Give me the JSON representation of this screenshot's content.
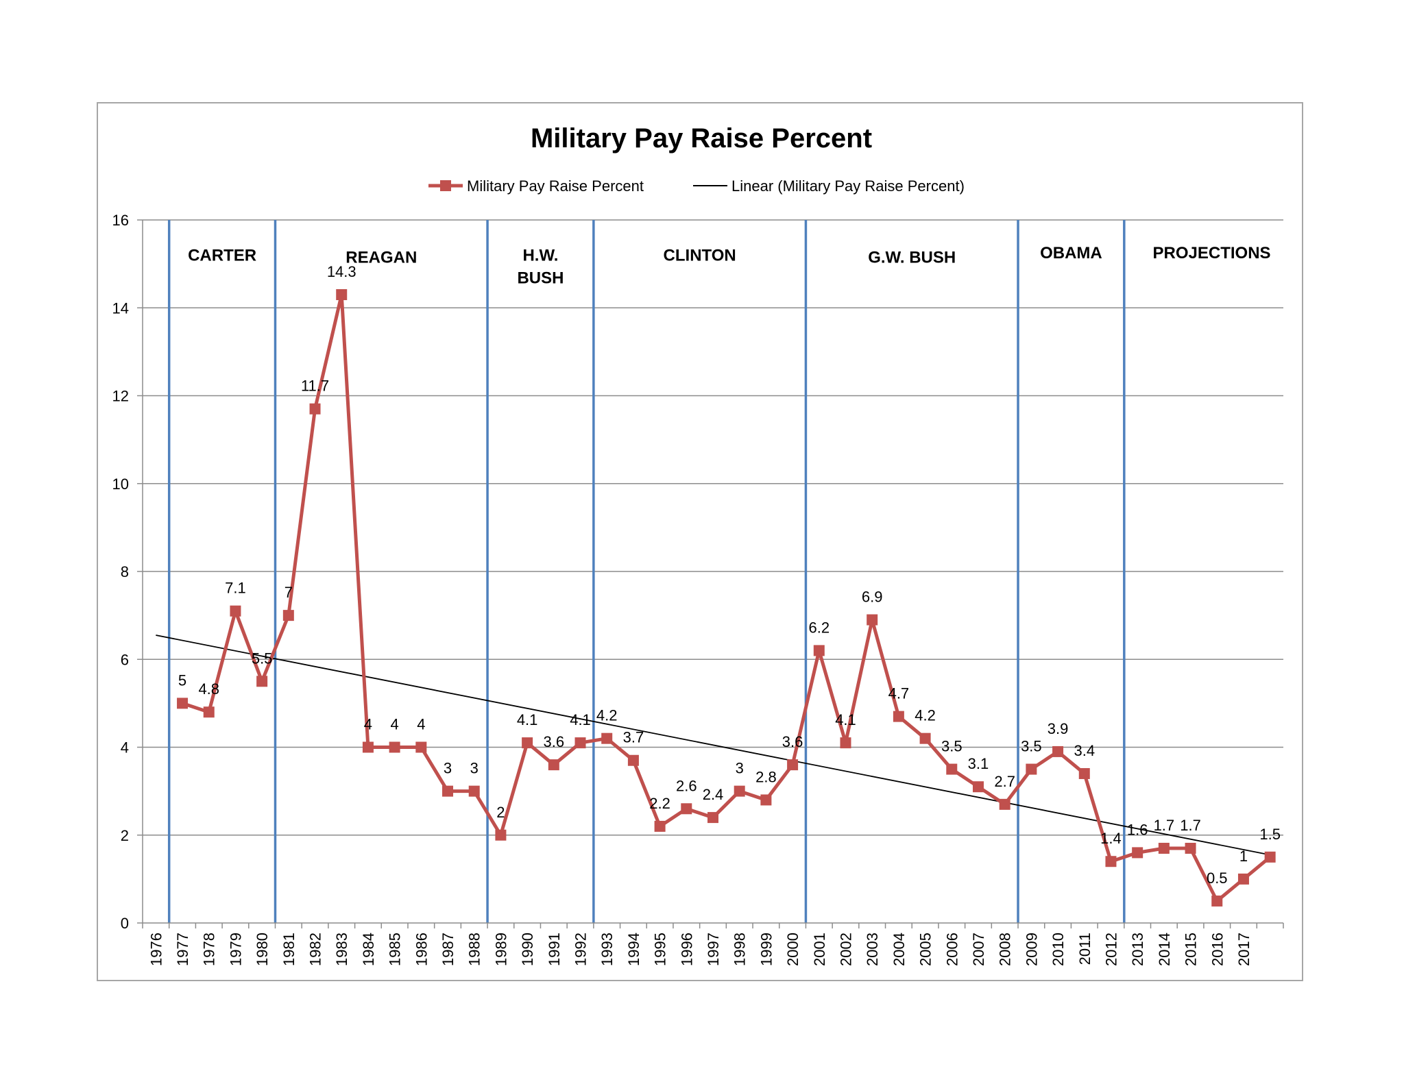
{
  "chart_data": {
    "type": "line",
    "title": "Military Pay Raise Percent",
    "xlabel": "",
    "ylabel": "",
    "ylim": [
      0,
      16
    ],
    "yticks": [
      0,
      2,
      4,
      6,
      8,
      10,
      12,
      14,
      16
    ],
    "categories": [
      "1976",
      "1977",
      "1978",
      "1979",
      "1980",
      "1981",
      "1982",
      "1983",
      "1984",
      "1985",
      "1986",
      "1987",
      "1988",
      "1989",
      "1990",
      "1991",
      "1992",
      "1993",
      "1994",
      "1995",
      "1996",
      "1997",
      "1998",
      "1999",
      "2000",
      "2001",
      "2002",
      "2003",
      "2004",
      "2005",
      "2006",
      "2007",
      "2008",
      "2009",
      "2010",
      "2011",
      "2012",
      "2013",
      "2014",
      "2015",
      "2016",
      "2017"
    ],
    "series": [
      {
        "name": "Military Pay Raise Percent",
        "color": "#c0504d",
        "marker": "square",
        "points": [
          {
            "x": 1.5,
            "y": 5,
            "label": "5"
          },
          {
            "x": 2.5,
            "y": 4.8,
            "label": "4.8"
          },
          {
            "x": 3.5,
            "y": 7.1,
            "label": "7.1"
          },
          {
            "x": 4.5,
            "y": 5.5,
            "label": "5.5"
          },
          {
            "x": 5.5,
            "y": 7,
            "label": "7"
          },
          {
            "x": 6.5,
            "y": 11.7,
            "label": "11.7"
          },
          {
            "x": 7.5,
            "y": 14.3,
            "label": "14.3"
          },
          {
            "x": 8.5,
            "y": 4,
            "label": "4"
          },
          {
            "x": 9.5,
            "y": 4,
            "label": "4"
          },
          {
            "x": 10.5,
            "y": 4,
            "label": "4"
          },
          {
            "x": 11.5,
            "y": 3,
            "label": "3"
          },
          {
            "x": 12.5,
            "y": 3,
            "label": "3"
          },
          {
            "x": 13.5,
            "y": 2,
            "label": "2"
          },
          {
            "x": 14.5,
            "y": 4.1,
            "label": "4.1"
          },
          {
            "x": 15.5,
            "y": 3.6,
            "label": "3.6"
          },
          {
            "x": 16.5,
            "y": 4.1,
            "label": "4.1"
          },
          {
            "x": 17.5,
            "y": 4.2,
            "label": "4.2"
          },
          {
            "x": 18.5,
            "y": 3.7,
            "label": "3.7"
          },
          {
            "x": 19.5,
            "y": 2.2,
            "label": "2.2"
          },
          {
            "x": 20.5,
            "y": 2.6,
            "label": "2.6"
          },
          {
            "x": 21.5,
            "y": 2.4,
            "label": "2.4"
          },
          {
            "x": 22.5,
            "y": 3,
            "label": "3"
          },
          {
            "x": 23.5,
            "y": 2.8,
            "label": "2.8"
          },
          {
            "x": 24.5,
            "y": 3.6,
            "label": "3.6"
          },
          {
            "x": 25.5,
            "y": 6.2,
            "label": "6.2"
          },
          {
            "x": 26.5,
            "y": 4.1,
            "label": "4.1"
          },
          {
            "x": 27.5,
            "y": 6.9,
            "label": "6.9"
          },
          {
            "x": 28.5,
            "y": 4.7,
            "label": "4.7"
          },
          {
            "x": 29.5,
            "y": 4.2,
            "label": "4.2"
          },
          {
            "x": 30.5,
            "y": 3.5,
            "label": "3.5"
          },
          {
            "x": 31.5,
            "y": 3.1,
            "label": "3.1"
          },
          {
            "x": 32.5,
            "y": 2.7,
            "label": "2.7"
          },
          {
            "x": 33.5,
            "y": 3.5,
            "label": "3.5"
          },
          {
            "x": 34.5,
            "y": 3.9,
            "label": "3.9"
          },
          {
            "x": 35.5,
            "y": 3.4,
            "label": "3.4"
          },
          {
            "x": 36.5,
            "y": 1.4,
            "label": "1.4"
          },
          {
            "x": 37.5,
            "y": 1.6,
            "label": "1.6"
          },
          {
            "x": 38.5,
            "y": 1.7,
            "label": "1.7"
          },
          {
            "x": 39.5,
            "y": 1.7,
            "label": "1.7"
          },
          {
            "x": 40.5,
            "y": 0.5,
            "label": "0.5"
          },
          {
            "x": 41.5,
            "y": 1,
            "label": "1"
          },
          {
            "x": 42.5,
            "y": 1.5,
            "label": "1.5"
          }
        ]
      }
    ],
    "trendline": {
      "name": "Linear (Military Pay Raise Percent)",
      "color": "#000000",
      "start": {
        "x": 0.5,
        "y": 6.55
      },
      "end": {
        "x": 42.5,
        "y": 1.55
      }
    },
    "dividers": {
      "color": "#4f81bd",
      "x": [
        1,
        5,
        13,
        17,
        25,
        33,
        37
      ]
    },
    "eras": [
      {
        "lines": [
          "CARTER"
        ],
        "x": 3.0,
        "y": 15.2
      },
      {
        "lines": [
          "REAGAN"
        ],
        "x": 9.0,
        "y": 15.15
      },
      {
        "lines": [
          "H.W.",
          "BUSH"
        ],
        "x": 15.0,
        "y": 15.2
      },
      {
        "lines": [
          "CLINTON"
        ],
        "x": 21.0,
        "y": 15.2
      },
      {
        "lines": [
          "G.W. BUSH"
        ],
        "x": 29.0,
        "y": 15.15
      },
      {
        "lines": [
          "OBAMA"
        ],
        "x": 35.0,
        "y": 15.25
      },
      {
        "lines": [
          "PROJECTIONS"
        ],
        "x": 40.3,
        "y": 15.25
      }
    ],
    "legend": {
      "position": "top-center",
      "series_label": "Military Pay Raise Percent",
      "trend_label": "Linear (Military Pay Raise Percent)"
    },
    "grid": true
  }
}
